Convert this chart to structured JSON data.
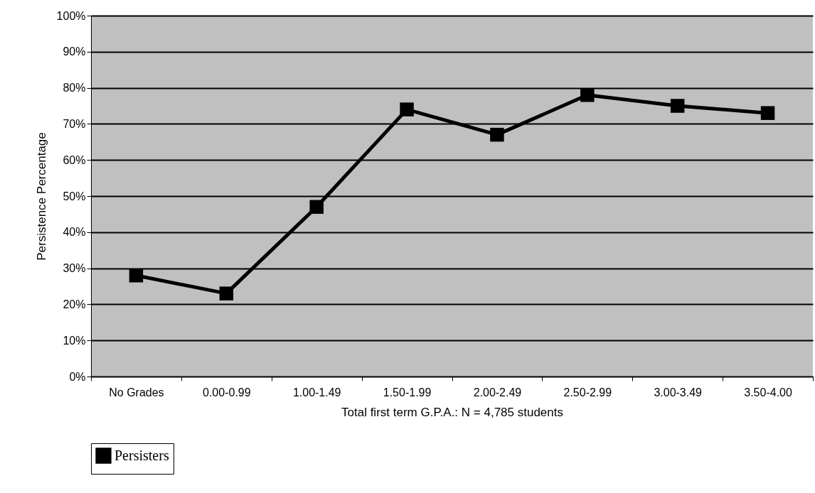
{
  "chart_data": {
    "type": "line",
    "xlabel": "Total first term G.P.A.: N = 4,785 students",
    "ylabel": "Persistence Percentage",
    "categories": [
      "No Grades",
      "0.00-0.99",
      "1.00-1.49",
      "1.50-1.99",
      "2.00-2.49",
      "2.50-2.99",
      "3.00-3.49",
      "3.50-4.00"
    ],
    "series": [
      {
        "name": "Persisters",
        "color": "#000000",
        "values": [
          28,
          23,
          47,
          74,
          67,
          78,
          75,
          73
        ]
      }
    ],
    "ylim": [
      0,
      100
    ],
    "yticks": [
      {
        "value": 0,
        "label": "0%"
      },
      {
        "value": 10,
        "label": "10%"
      },
      {
        "value": 20,
        "label": "20%"
      },
      {
        "value": 30,
        "label": "30%"
      },
      {
        "value": 40,
        "label": "40%"
      },
      {
        "value": 50,
        "label": "50%"
      },
      {
        "value": 60,
        "label": "60%"
      },
      {
        "value": 70,
        "label": "70%"
      },
      {
        "value": 80,
        "label": "80%"
      },
      {
        "value": 90,
        "label": "90%"
      },
      {
        "value": 100,
        "label": "100%"
      }
    ],
    "grid": "y",
    "legend": "bottom",
    "marker": "square",
    "line_style": "solid"
  }
}
